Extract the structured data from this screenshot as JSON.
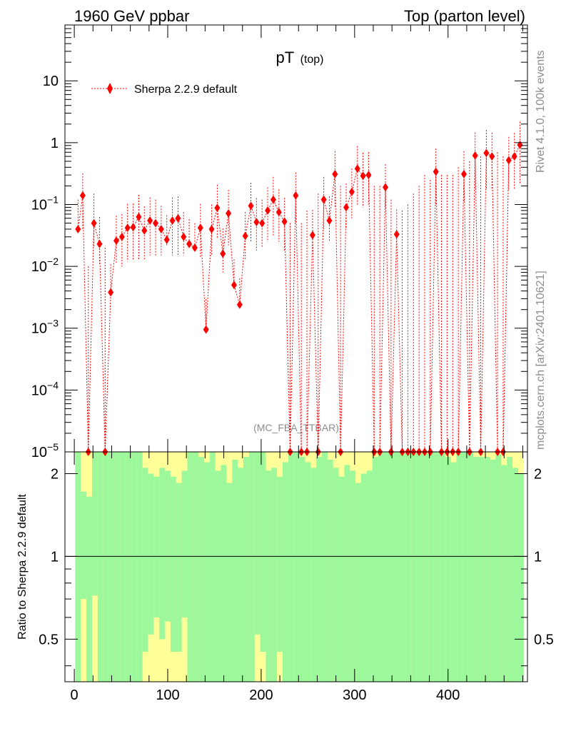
{
  "header": {
    "left": "1960 GeV ppbar",
    "right": "Top (parton level)"
  },
  "side_labels": {
    "rivet": "Rivet 4.1.0,  100k events",
    "mcplots": "mcplots.cern.ch [arXiv:2401.10621]"
  },
  "watermark": "(MC_FBA_TTBAR)",
  "chart_data": [
    {
      "type": "scatter",
      "title": "pT",
      "title_sub": "(top)",
      "yscale": "log",
      "ylim": [
        1e-05,
        80
      ],
      "xlim": [
        -10,
        485
      ],
      "y_ticks": [
        {
          "v": 10,
          "base": "10",
          "exp": ""
        },
        {
          "v": 1,
          "base": "1",
          "exp": ""
        },
        {
          "v": 0.1,
          "base": "10",
          "exp": "−1"
        },
        {
          "v": 0.01,
          "base": "10",
          "exp": "−2"
        },
        {
          "v": 0.001,
          "base": "10",
          "exp": "−3"
        },
        {
          "v": 0.0001,
          "base": "10",
          "exp": "−4"
        },
        {
          "v": 1e-05,
          "base": "10",
          "exp": "−5"
        }
      ],
      "legend": {
        "label": "Sherpa 2.2.9 default",
        "color": "#ff0000",
        "marker": "diamond",
        "position": "top-left"
      },
      "series": [
        {
          "name": "Sherpa 2.2.9 default",
          "color": "#ff0000",
          "x": [
            4,
            9,
            15,
            21,
            27,
            33,
            39,
            45,
            51,
            57,
            63,
            69,
            75,
            81,
            87,
            93,
            99,
            105,
            111,
            117,
            123,
            129,
            135,
            141,
            147,
            153,
            159,
            165,
            171,
            177,
            183,
            189,
            195,
            201,
            207,
            213,
            219,
            225,
            231,
            237,
            243,
            249,
            255,
            261,
            267,
            273,
            279,
            285,
            291,
            297,
            303,
            309,
            315,
            321,
            327,
            333,
            339,
            345,
            351,
            357,
            363,
            369,
            375,
            381,
            387,
            393,
            399,
            405,
            411,
            417,
            423,
            429,
            435,
            441,
            447,
            453,
            459,
            465,
            471,
            477
          ],
          "y": [
            0.04,
            0.14,
            5e-06,
            0.05,
            0.023,
            5e-06,
            0.0038,
            0.026,
            0.03,
            0.042,
            0.043,
            0.063,
            0.038,
            0.055,
            0.05,
            0.04,
            0.027,
            0.055,
            0.06,
            0.03,
            0.023,
            0.02,
            0.042,
            0.00095,
            0.04,
            0.088,
            0.016,
            0.072,
            0.005,
            0.0024,
            0.031,
            0.095,
            0.052,
            0.05,
            0.08,
            0.12,
            0.075,
            0.053,
            5e-06,
            0.14,
            5e-06,
            5e-06,
            0.032,
            5e-06,
            0.12,
            0.055,
            0.31,
            5e-06,
            0.09,
            0.16,
            0.38,
            0.29,
            0.3,
            5e-06,
            5e-06,
            0.19,
            5e-06,
            0.033,
            5e-06,
            5e-06,
            5e-06,
            5e-06,
            5e-06,
            5e-06,
            0.34,
            5e-06,
            5e-06,
            5e-06,
            5e-06,
            0.31,
            5e-06,
            0.62,
            5e-06,
            0.68,
            0.6,
            5e-06,
            5e-06,
            0.52,
            0.6,
            0.92
          ],
          "err_up": [
            0.08,
            0.18,
            0.01,
            0.1,
            0.04,
            0.02,
            0.007,
            0.04,
            0.04,
            0.06,
            0.06,
            0.08,
            0.055,
            0.075,
            0.07,
            0.055,
            0.04,
            0.075,
            0.075,
            0.045,
            0.035,
            0.03,
            0.06,
            0.002,
            0.06,
            0.12,
            0.025,
            0.1,
            0.008,
            0.004,
            0.045,
            0.13,
            0.075,
            0.07,
            0.11,
            0.16,
            0.1,
            0.075,
            0.05,
            0.19,
            0.05,
            0.08,
            0.05,
            0.15,
            0.16,
            0.08,
            0.42,
            0.2,
            0.13,
            0.22,
            0.5,
            0.4,
            0.4,
            0.2,
            0.2,
            0.26,
            0.12,
            0.05,
            0.08,
            0.1,
            0.15,
            0.2,
            0.3,
            0.25,
            0.46,
            0.3,
            0.3,
            0.3,
            0.4,
            0.42,
            0.5,
            0.84,
            0.6,
            0.93,
            0.84,
            0.7,
            0.6,
            0.72,
            0.83,
            1.26
          ],
          "err_down": [
            1e-05,
            0.1,
            0,
            0.03,
            0.012,
            0,
            1e-05,
            0.015,
            0.02,
            0.03,
            0.03,
            0.05,
            0.025,
            0.04,
            0.035,
            0.025,
            0.005,
            0.04,
            0.045,
            0.015,
            0.0001,
            0.0001,
            0.028,
            1e-05,
            0.025,
            0.06,
            0.008,
            0.05,
            1e-05,
            1e-05,
            0.018,
            0.07,
            0.034,
            0.03,
            0.055,
            0.09,
            0.05,
            0.035,
            0,
            0.09,
            0,
            0,
            1e-05,
            0,
            0.08,
            0.03,
            0.22,
            0,
            0.05,
            0.1,
            0.28,
            0.2,
            0.2,
            0,
            0,
            0.1,
            0,
            1e-05,
            0,
            0,
            0,
            0,
            0,
            0,
            0.24,
            0,
            0,
            0,
            0,
            0.2,
            0,
            0.45,
            0,
            0.5,
            0.43,
            0,
            0,
            0.35,
            0.42,
            0.7
          ]
        }
      ]
    },
    {
      "type": "area",
      "ylabel": "Ratio to Sherpa 2.2.9 default",
      "yscale": "log",
      "ylim": [
        0.35,
        2.4
      ],
      "xlim": [
        -10,
        485
      ],
      "reference_line": 1,
      "y_ticks": [
        {
          "v": 2,
          "label": "2"
        },
        {
          "v": 1,
          "label": "1"
        },
        {
          "v": 0.5,
          "label": "0.5"
        }
      ],
      "x_ticks": [
        {
          "v": 0,
          "label": "0"
        },
        {
          "v": 100,
          "label": "100"
        },
        {
          "v": 200,
          "label": "200"
        },
        {
          "v": 300,
          "label": "300"
        },
        {
          "v": 400,
          "label": "400"
        }
      ],
      "bin_width": 6,
      "bin_start": 1,
      "bands": {
        "green_color": "#9cf89a",
        "yellow_color": "#ffff99",
        "green_hi": [
          2.4,
          1.72,
          1.65,
          2.4,
          2.4,
          2.4,
          2.4,
          2.4,
          2.4,
          2.4,
          2.4,
          2.4,
          2.1,
          2.0,
          1.95,
          2.1,
          2.05,
          1.95,
          1.85,
          2.05,
          2.4,
          2.4,
          2.3,
          2.2,
          2.4,
          2.05,
          2.15,
          1.85,
          2.25,
          2.1,
          2.3,
          2.4,
          2.4,
          2.4,
          2.05,
          2.1,
          1.95,
          2.2,
          2.4,
          2.4,
          2.3,
          2.2,
          2.1,
          2.3,
          2.4,
          2.25,
          2.1,
          1.95,
          2.15,
          2.05,
          1.85,
          2.0,
          2.05,
          2.3,
          2.4,
          2.4,
          2.4,
          2.4,
          2.4,
          2.4,
          2.4,
          2.4,
          2.4,
          2.4,
          2.4,
          2.4,
          2.3,
          2.2,
          2.4,
          2.4,
          2.4,
          2.3,
          2.3,
          2.3,
          2.25,
          2.35,
          2.15,
          2.3,
          2.1,
          2.0
        ],
        "yellow_hi": [
          2.4,
          2.4,
          2.4,
          2.4,
          2.4,
          2.4,
          2.4,
          2.4,
          2.4,
          2.4,
          2.4,
          2.4,
          2.4,
          2.4,
          2.4,
          2.4,
          2.4,
          2.4,
          2.4,
          2.4,
          2.4,
          2.4,
          2.4,
          2.4,
          2.4,
          2.4,
          2.4,
          2.4,
          2.4,
          2.4,
          2.4,
          2.4,
          2.4,
          2.4,
          2.4,
          2.4,
          2.4,
          2.4,
          2.4,
          2.4,
          2.4,
          2.4,
          2.4,
          2.4,
          2.4,
          2.4,
          2.4,
          2.4,
          2.4,
          2.4,
          2.4,
          2.4,
          2.4,
          2.4,
          2.4,
          2.4,
          2.4,
          2.4,
          2.4,
          2.4,
          2.4,
          2.4,
          2.4,
          2.4,
          2.4,
          2.4,
          2.4,
          2.4,
          2.4,
          2.4,
          2.4,
          2.4,
          2.4,
          2.4,
          2.4,
          2.4,
          2.4,
          2.4,
          2.4,
          2.4
        ],
        "green_lo": [
          0.35,
          0.7,
          0.35,
          0.72,
          0.35,
          0.35,
          0.35,
          0.35,
          0.35,
          0.35,
          0.35,
          0.35,
          0.45,
          0.52,
          0.6,
          0.5,
          0.58,
          0.45,
          0.45,
          0.6,
          0.35,
          0.35,
          0.35,
          0.35,
          0.35,
          0.35,
          0.35,
          0.35,
          0.35,
          0.35,
          0.35,
          0.35,
          0.52,
          0.45,
          0.35,
          0.35,
          0.45,
          0.35,
          0.35,
          0.35,
          0.35,
          0.35,
          0.35,
          0.35,
          0.35,
          0.35,
          0.35,
          0.35,
          0.35,
          0.35,
          0.35,
          0.35,
          0.35,
          0.35,
          0.35,
          0.35,
          0.35,
          0.35,
          0.35,
          0.35,
          0.35,
          0.35,
          0.35,
          0.35,
          0.35,
          0.35,
          0.35,
          0.35,
          0.35,
          0.35,
          0.35,
          0.35,
          0.35,
          0.35,
          0.35,
          0.35,
          0.35,
          0.35,
          0.35,
          0.35
        ],
        "yellow_lo": [
          0.35,
          0.35,
          0.35,
          0.35,
          0.35,
          0.35,
          0.35,
          0.35,
          0.35,
          0.35,
          0.35,
          0.35,
          0.35,
          0.35,
          0.35,
          0.35,
          0.35,
          0.35,
          0.35,
          0.35,
          0.35,
          0.35,
          0.35,
          0.35,
          0.35,
          0.35,
          0.35,
          0.35,
          0.35,
          0.35,
          0.35,
          0.35,
          0.35,
          0.35,
          0.35,
          0.35,
          0.35,
          0.35,
          0.35,
          0.35,
          0.35,
          0.35,
          0.35,
          0.35,
          0.35,
          0.35,
          0.35,
          0.35,
          0.35,
          0.35,
          0.35,
          0.35,
          0.35,
          0.35,
          0.35,
          0.35,
          0.35,
          0.35,
          0.35,
          0.35,
          0.35,
          0.35,
          0.35,
          0.35,
          0.35,
          0.35,
          0.35,
          0.35,
          0.35,
          0.35,
          0.35,
          0.35,
          0.35,
          0.35,
          0.35,
          0.35,
          0.35,
          0.35,
          0.35,
          0.35
        ]
      }
    }
  ]
}
